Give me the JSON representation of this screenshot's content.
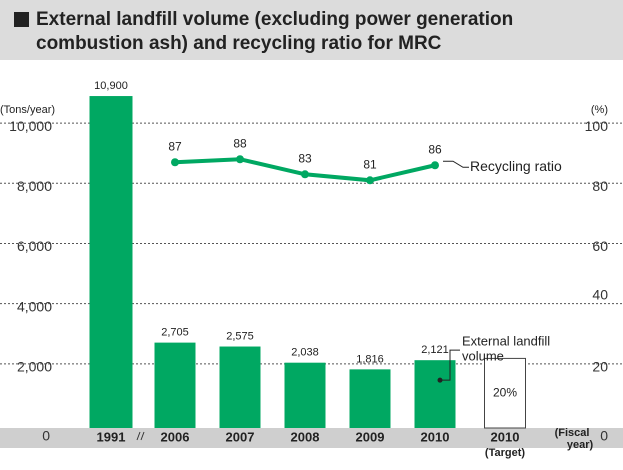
{
  "chart_data": {
    "type": "bar_line",
    "title_lines": [
      "External landfill volume (excluding power generation",
      "combustion ash) and recycling ratio for MRC"
    ],
    "y_label": "(Tons/year)",
    "y2_label": "(%)",
    "x_label_lines": [
      "(Fiscal",
      "year)"
    ],
    "categories": [
      "1991",
      "2006",
      "2007",
      "2008",
      "2009",
      "2010",
      "2010"
    ],
    "target_label": "(Target)",
    "ylim": [
      0,
      11500
    ],
    "yticks": [
      0,
      {
        "value": 2000,
        "label": "2,000"
      },
      {
        "value": 4000,
        "label": "4,000"
      },
      {
        "value": 6000,
        "label": "6,000"
      },
      {
        "value": 8000,
        "label": "8,000"
      },
      {
        "value": 10000,
        "label": "10,000"
      }
    ],
    "y2lim": [
      0,
      115
    ],
    "y2ticks": [
      0,
      20,
      40,
      60,
      80,
      100
    ],
    "grid": true,
    "series": [
      {
        "name_lines": [
          "External landfill",
          "volume"
        ],
        "kind": "bar",
        "color": "#00a862",
        "values": [
          10900,
          2705,
          2575,
          2038,
          1816,
          2121,
          2180
        ],
        "value_labels": [
          "10,900",
          "2,705",
          "2,575",
          "2,038",
          "1,816",
          "2,121",
          null
        ],
        "target_index": 6,
        "target_annotation": "20%"
      },
      {
        "name": "Recycling ratio",
        "kind": "line",
        "axis": "y2",
        "color": "#00a862",
        "values": [
          null,
          87,
          88,
          83,
          81,
          86,
          null
        ]
      }
    ]
  }
}
